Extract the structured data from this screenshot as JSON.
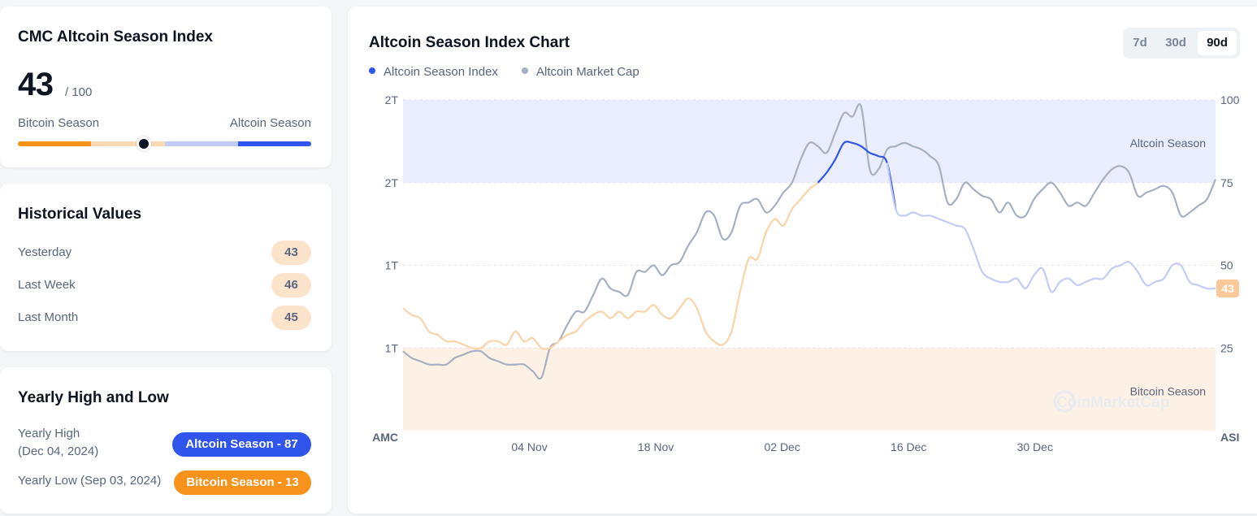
{
  "index_card": {
    "title": "CMC Altcoin Season Index",
    "value": "43",
    "max": "/ 100",
    "left_label": "Bitcoin Season",
    "right_label": "Altcoin Season",
    "gauge_value": 43,
    "colors": {
      "bitcoin": "#f7931a",
      "bitcoin_light": "#fbd9b5",
      "altcoin_light": "#c3ccf7",
      "altcoin": "#3055ec"
    }
  },
  "historical": {
    "title": "Historical Values",
    "rows": [
      {
        "label": "Yesterday",
        "value": "43"
      },
      {
        "label": "Last Week",
        "value": "46"
      },
      {
        "label": "Last Month",
        "value": "45"
      }
    ]
  },
  "yearly": {
    "title": "Yearly High and Low",
    "high_label": "Yearly High",
    "high_date": "(Dec 04, 2024)",
    "high_badge": "Altcoin Season - 87",
    "low_label": "Yearly Low",
    "low_date": "(Sep 03, 2024)",
    "low_badge": "Bitcoin Season - 13"
  },
  "chart_header": {
    "title": "Altcoin Season Index Chart",
    "legend": [
      {
        "name": "Altcoin Season Index",
        "color": "#3055ec"
      },
      {
        "name": "Altcoin Market Cap",
        "color": "#a6b0c3"
      }
    ],
    "ranges": [
      {
        "label": "7d",
        "active": false
      },
      {
        "label": "30d",
        "active": false
      },
      {
        "label": "90d",
        "active": true
      }
    ]
  },
  "chart_data": {
    "type": "line",
    "left_axis_title": "AMC",
    "right_axis_title": "ASI",
    "left_ticks": [
      "2T",
      "2T",
      "1T",
      "1T"
    ],
    "right_ticks": [
      100,
      75,
      50,
      25
    ],
    "right_ylim": [
      0,
      100
    ],
    "x_tick_labels": [
      "04 Nov",
      "18 Nov",
      "02 Dec",
      "16 Dec",
      "30 Dec"
    ],
    "x_tick_days": [
      14,
      28,
      42,
      56,
      70
    ],
    "x_range_days": [
      0,
      90
    ],
    "band_labels": {
      "altcoin": "Altcoin Season",
      "bitcoin": "Bitcoin Season"
    },
    "band_thresholds": {
      "altcoin": 75,
      "bitcoin": 25
    },
    "current_value": "43",
    "watermark": "CoinMarketCap",
    "series": [
      {
        "name": "Altcoin Season Index",
        "axis": "right",
        "values": [
          37,
          35,
          34,
          30,
          29,
          27,
          27,
          26,
          25,
          25,
          27,
          27,
          26,
          30,
          27,
          28,
          25,
          25,
          27,
          29,
          30,
          33,
          35,
          36,
          34,
          36,
          34,
          36,
          36,
          38,
          35,
          34,
          37,
          40,
          37,
          30,
          27,
          26,
          30,
          42,
          52,
          52,
          60,
          64,
          62,
          67,
          70,
          73,
          75,
          78,
          82,
          87,
          87,
          86,
          84,
          83,
          81,
          67,
          65,
          66,
          65,
          65,
          64,
          63,
          62,
          61,
          55,
          48,
          46,
          45,
          45,
          46,
          43,
          47,
          49,
          42,
          45,
          46,
          44,
          45,
          46,
          46,
          49,
          50,
          51,
          48,
          44,
          45,
          46,
          50,
          50,
          45,
          44,
          43,
          43
        ]
      },
      {
        "name": "Altcoin Market Cap",
        "axis": "right",
        "values": [
          24,
          22,
          21,
          20,
          20,
          20,
          22,
          23,
          24,
          24,
          22,
          21,
          20,
          20,
          20,
          18,
          16,
          25,
          27,
          32,
          36,
          36,
          41,
          46,
          43,
          42,
          41,
          48,
          48,
          50,
          47,
          50,
          51,
          56,
          60,
          66,
          65,
          58,
          60,
          68,
          69,
          70,
          66,
          68,
          72,
          75,
          82,
          87,
          86,
          84,
          90,
          96,
          95,
          98,
          79,
          79,
          85,
          86,
          87,
          86,
          85,
          83,
          80,
          69,
          70,
          75,
          73,
          71,
          70,
          66,
          69,
          65,
          65,
          70,
          73,
          75,
          72,
          68,
          69,
          68,
          72,
          76,
          79,
          80,
          78,
          71,
          72,
          73,
          74,
          72,
          65,
          66,
          68,
          70,
          76
        ]
      }
    ]
  }
}
